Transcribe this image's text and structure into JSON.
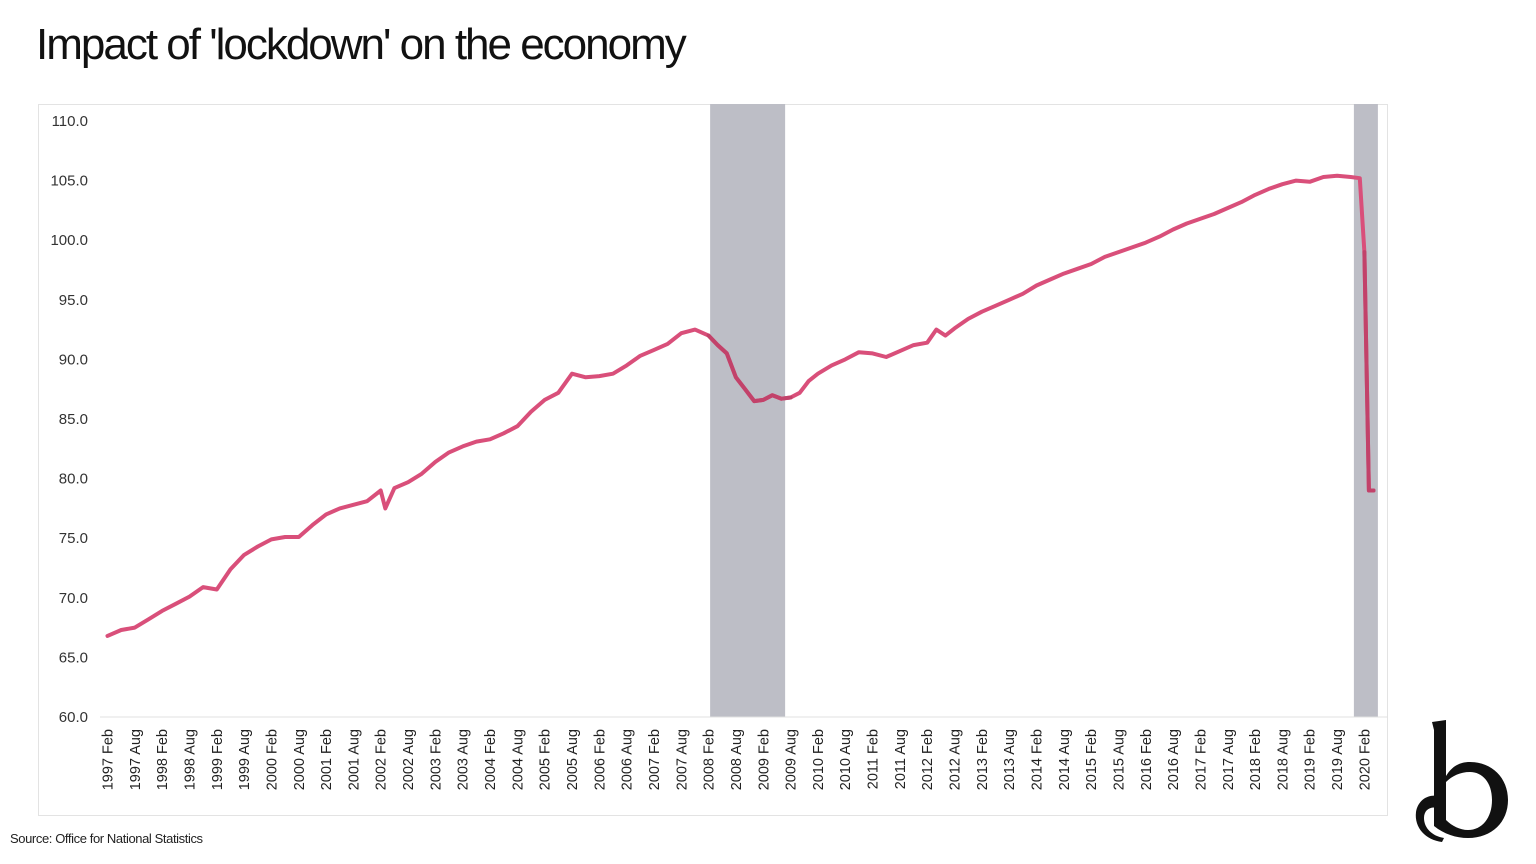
{
  "title": "Impact of 'lockdown' on the economy",
  "source": "Source: Office for National Statistics",
  "logo_icon": "b-logo-icon",
  "colors": {
    "line": "#d94f7a",
    "recession": "#bdbec6",
    "line_in_recession": "#c2426a"
  },
  "chart_data": {
    "type": "line",
    "title": "Impact of 'lockdown' on the economy",
    "xlabel": "",
    "ylabel": "",
    "ylim": [
      60,
      110
    ],
    "yticks": [
      "110.0",
      "105.0",
      "100.0",
      "95.0",
      "90.0",
      "85.0",
      "80.0",
      "75.0",
      "70.0",
      "65.0",
      "60.0"
    ],
    "xtick_labels": [
      "1997 Feb",
      "1997 Aug",
      "1998 Feb",
      "1998 Aug",
      "1999 Feb",
      "1999 Aug",
      "2000 Feb",
      "2000 Aug",
      "2001 Feb",
      "2001 Aug",
      "2002 Feb",
      "2002 Aug",
      "2003 Feb",
      "2003 Aug",
      "2004 Feb",
      "2004 Aug",
      "2005 Feb",
      "2005 Aug",
      "2006 Feb",
      "2006 Aug",
      "2007 Feb",
      "2007 Aug",
      "2008 Feb",
      "2008 Aug",
      "2009 Feb",
      "2009 Aug",
      "2010 Feb",
      "2010 Aug",
      "2011 Feb",
      "2011 Aug",
      "2012 Feb",
      "2012 Aug",
      "2013 Feb",
      "2013 Aug",
      "2014 Feb",
      "2014 Aug",
      "2015 Feb",
      "2015 Aug",
      "2016 Feb",
      "2016 Aug",
      "2017 Feb",
      "2017 Aug",
      "2018 Feb",
      "2018 Aug",
      "2019 Feb",
      "2019 Aug",
      "2020 Feb"
    ],
    "grid": false,
    "shaded_periods": [
      {
        "start": "2008 Feb",
        "end": "2009 Aug"
      },
      {
        "start": "2020 Feb",
        "end": "2020 Apr"
      }
    ],
    "series": [
      {
        "x": [
          "1997 Feb",
          "1997 May",
          "1997 Aug",
          "1997 Nov",
          "1998 Feb",
          "1998 May",
          "1998 Aug",
          "1998 Nov",
          "1999 Feb",
          "1999 May",
          "1999 Aug",
          "1999 Nov",
          "2000 Feb",
          "2000 May",
          "2000 Aug",
          "2000 Nov",
          "2001 Feb",
          "2001 May",
          "2001 Aug",
          "2001 Nov",
          "2002 Feb",
          "2002 Mar",
          "2002 May",
          "2002 Aug",
          "2002 Nov",
          "2003 Feb",
          "2003 May",
          "2003 Aug",
          "2003 Nov",
          "2004 Feb",
          "2004 May",
          "2004 Aug",
          "2004 Nov",
          "2005 Feb",
          "2005 May",
          "2005 Aug",
          "2005 Nov",
          "2006 Feb",
          "2006 May",
          "2006 Aug",
          "2006 Nov",
          "2007 Feb",
          "2007 May",
          "2007 Aug",
          "2007 Nov",
          "2008 Feb",
          "2008 Apr",
          "2008 Jun",
          "2008 Aug",
          "2008 Oct",
          "2008 Dec",
          "2009 Feb",
          "2009 Apr",
          "2009 Jun",
          "2009 Aug",
          "2009 Oct",
          "2009 Dec",
          "2010 Feb",
          "2010 May",
          "2010 Aug",
          "2010 Nov",
          "2011 Feb",
          "2011 May",
          "2011 Aug",
          "2011 Nov",
          "2012 Feb",
          "2012 Apr",
          "2012 Jun",
          "2012 Aug",
          "2012 Nov",
          "2013 Feb",
          "2013 May",
          "2013 Aug",
          "2013 Nov",
          "2014 Feb",
          "2014 May",
          "2014 Aug",
          "2014 Nov",
          "2015 Feb",
          "2015 May",
          "2015 Aug",
          "2015 Nov",
          "2016 Feb",
          "2016 May",
          "2016 Aug",
          "2016 Nov",
          "2017 Feb",
          "2017 May",
          "2017 Aug",
          "2017 Nov",
          "2018 Feb",
          "2018 May",
          "2018 Aug",
          "2018 Nov",
          "2019 Feb",
          "2019 May",
          "2019 Aug",
          "2019 Nov",
          "2020 Jan",
          "2020 Feb",
          "2020 Mar",
          "2020 Apr"
        ],
        "values": [
          66.8,
          67.3,
          67.5,
          68.2,
          68.9,
          69.5,
          70.1,
          70.9,
          70.7,
          72.4,
          73.6,
          74.3,
          74.9,
          75.1,
          75.1,
          76.1,
          77.0,
          77.5,
          77.8,
          78.1,
          79.0,
          77.5,
          79.2,
          79.7,
          80.4,
          81.4,
          82.2,
          82.7,
          83.1,
          83.3,
          83.8,
          84.4,
          85.6,
          86.6,
          87.2,
          88.8,
          88.5,
          88.6,
          88.8,
          89.5,
          90.3,
          90.8,
          91.3,
          92.2,
          92.5,
          92.0,
          91.2,
          90.5,
          88.5,
          87.5,
          86.5,
          86.6,
          87.0,
          86.7,
          86.8,
          87.2,
          88.2,
          88.8,
          89.5,
          90.0,
          90.6,
          90.5,
          90.2,
          90.7,
          91.2,
          91.4,
          92.5,
          92.0,
          92.6,
          93.4,
          94.0,
          94.5,
          95.0,
          95.5,
          96.2,
          96.7,
          97.2,
          97.6,
          98.0,
          98.6,
          99.0,
          99.4,
          99.8,
          100.3,
          100.9,
          101.4,
          101.8,
          102.2,
          102.7,
          103.2,
          103.8,
          104.3,
          104.7,
          105.0,
          104.9,
          105.3,
          105.4,
          105.3,
          105.2,
          99.0,
          79.0,
          79.0
        ]
      }
    ]
  }
}
